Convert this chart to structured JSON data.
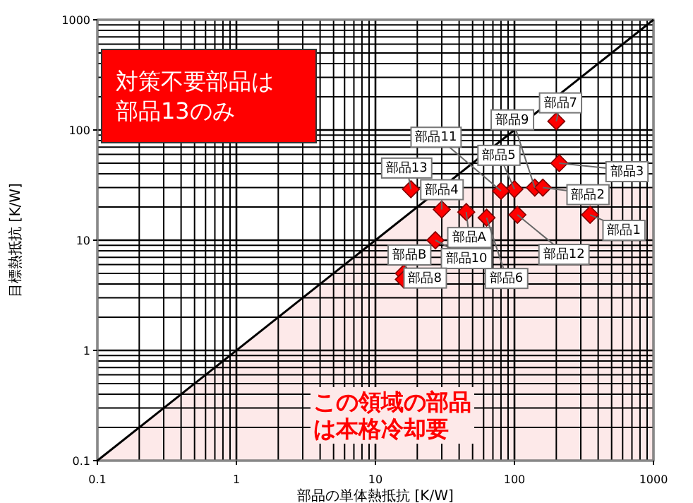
{
  "chart_data": {
    "type": "scatter",
    "xlabel": "部品の単体熱抵抗 [K/W]",
    "ylabel": "目標熱抵抗 [K/W]",
    "log": "xy",
    "xlim": [
      0.1,
      1000
    ],
    "ylim": [
      0.1,
      1000
    ],
    "xticks": [
      0.1,
      1,
      10,
      100,
      1000
    ],
    "yticks": [
      0.1,
      1,
      10,
      100,
      1000
    ],
    "grid": true,
    "series": [
      {
        "type": "line",
        "color": "#000000",
        "x": [
          0.1,
          1000
        ],
        "values": [
          0.1,
          1000
        ]
      },
      {
        "marker": "diamond",
        "color": "#ff0000",
        "x": [
          200,
          210,
          140,
          160,
          350,
          100,
          80,
          18,
          30,
          45,
          63,
          105,
          27,
          16,
          16
        ],
        "values": [
          120,
          50,
          30,
          30,
          17,
          29,
          28,
          29,
          19,
          18,
          16,
          17,
          10,
          5,
          4.4
        ]
      }
    ],
    "bands": [
      {
        "axis": "y",
        "from": 0.1,
        "to": 30,
        "color": "#fde9e9",
        "label": "この領域の部品は本格冷却要"
      }
    ],
    "annotations": [
      "対策不要部品は部品13のみ",
      {
        "text": "部品7",
        "x": 200,
        "y": 120
      },
      {
        "text": "部品3",
        "x": 210,
        "y": 50
      },
      {
        "text": "部品9",
        "x": 140,
        "y": 30
      },
      {
        "text": "部品2",
        "x": 160,
        "y": 30
      },
      {
        "text": "部品1",
        "x": 350,
        "y": 17
      },
      {
        "text": "部品5",
        "x": 100,
        "y": 29
      },
      {
        "text": "部品11",
        "x": 80,
        "y": 28
      },
      {
        "text": "部品13",
        "x": 18,
        "y": 29
      },
      {
        "text": "部品4",
        "x": 30,
        "y": 19
      },
      {
        "text": "部品A",
        "x": 45,
        "y": 18
      },
      {
        "text": "部品6",
        "x": 63,
        "y": 16
      },
      {
        "text": "部品12",
        "x": 105,
        "y": 17
      },
      {
        "text": "部品10",
        "x": 27,
        "y": 10
      },
      {
        "text": "部品B",
        "x": 16,
        "y": 5
      },
      {
        "text": "部品8",
        "x": 16,
        "y": 4.4
      }
    ]
  }
}
